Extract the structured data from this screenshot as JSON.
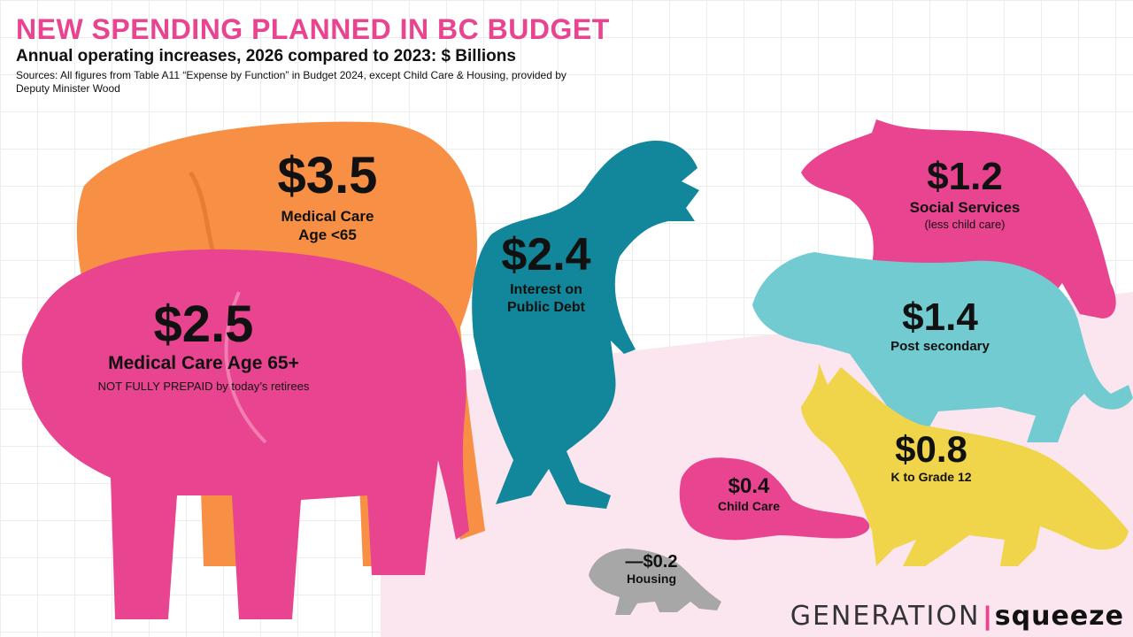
{
  "chart_data": {
    "type": "bar",
    "title": "NEW SPENDING PLANNED IN BC BUDGET",
    "subtitle": "Annual operating increases, 2026 compared to 2023: $ Billions",
    "source": "Sources: All figures from Table A11 “Expense by Function” in Budget 2024, except Child Care & Housing, provided by Deputy Minister Wood",
    "categories": [
      "Medical Care Age <65",
      "Medical Care Age 65+",
      "Interest on Public Debt",
      "Social Services (less child care)",
      "Post secondary",
      "K to Grade 12",
      "Child Care",
      "Housing"
    ],
    "values": [
      3.5,
      2.5,
      2.4,
      1.2,
      1.4,
      0.8,
      0.4,
      0.2
    ],
    "units": "$ Billions"
  },
  "labels": {
    "elephant_orange": {
      "value": "$3.5",
      "name_line1": "Medical Care",
      "name_line2": "Age <65",
      "color": "#f79045"
    },
    "elephant_pink": {
      "value": "$2.5",
      "name": "Medical Care Age 65+",
      "note": "NOT FULLY PREPAID by today’s retirees",
      "color": "#e8448f"
    },
    "trex": {
      "value": "$2.4",
      "name_line1": "Interest on",
      "name_line2": "Public Debt",
      "color": "#12869a"
    },
    "bear": {
      "value": "$1.2",
      "name": "Social Services",
      "note": "(less child care)",
      "color": "#e8448f"
    },
    "tiger": {
      "value": "$1.4",
      "name": "Post secondary",
      "color": "#72cbd1"
    },
    "fox": {
      "value": "$0.8",
      "name": "K to Grade 12",
      "color": "#f0d44a"
    },
    "beaver": {
      "value": "$0.4",
      "name": "Child Care",
      "color": "#e8448f"
    },
    "raccoon": {
      "value": "—$0.2",
      "name": "Housing",
      "color": "#a7a7a7"
    }
  },
  "logo": {
    "part1": "GENERATION",
    "divider": "|",
    "part2": "squeeze"
  }
}
